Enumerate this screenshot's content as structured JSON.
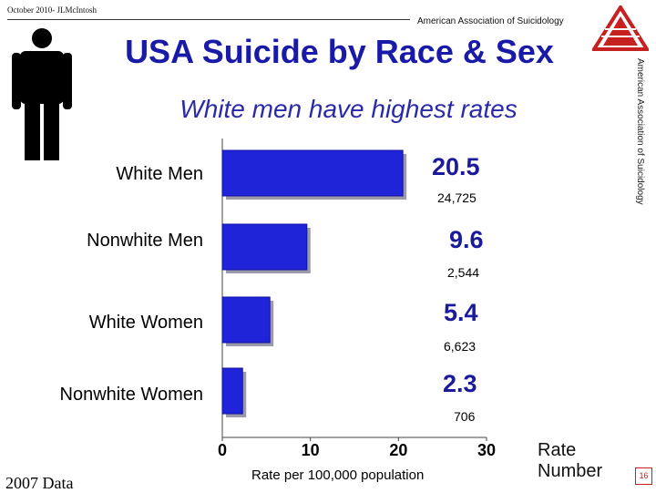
{
  "header": {
    "left_text": "October 2010- JLMcIntosh",
    "right_text": "American Association of Suicidology",
    "side_text": "American Association of Suicidology"
  },
  "chart_data": {
    "type": "bar",
    "orientation": "horizontal",
    "title": "USA Suicide by Race & Sex",
    "subtitle": "White men have highest rates",
    "categories": [
      "White Men",
      "Nonwhite Men",
      "White Women",
      "Nonwhite Women"
    ],
    "values": [
      20.5,
      9.6,
      5.4,
      2.3
    ],
    "value_labels": [
      "20.5",
      "9.6",
      "5.4",
      "2.3"
    ],
    "numbers": [
      "24,725",
      "2,544",
      "6,623",
      "706"
    ],
    "x_ticks": [
      "0",
      "10",
      "20",
      "30"
    ],
    "xlim": [
      0,
      30
    ],
    "xlabel": "Rate per 100,000 population",
    "grid": false,
    "bar_color": "#1f24d8",
    "label_color": "#1a1a9a"
  },
  "legend": {
    "rate": "Rate",
    "number": "Number"
  },
  "footer": {
    "year": "2007 Data",
    "page": "16"
  },
  "colors": {
    "title": "#1a1aa8",
    "logo_red": "#c62020"
  },
  "icons": {
    "figure": "man-figure-icon",
    "logo": "aas-logo-icon"
  }
}
